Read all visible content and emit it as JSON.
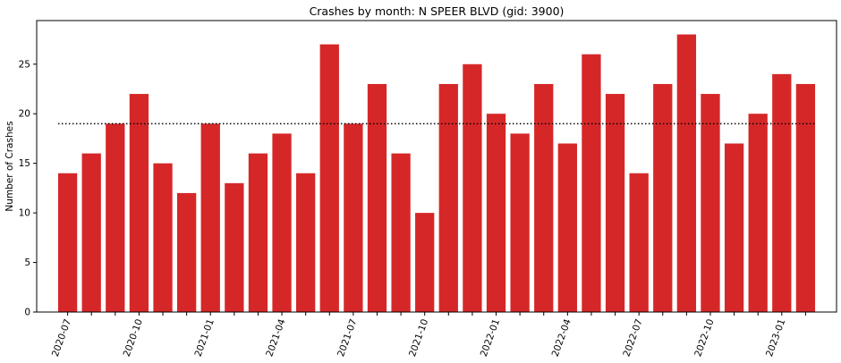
{
  "chart_data": {
    "type": "bar",
    "title": "Crashes by month: N SPEER BLVD (gid: 3900)",
    "xlabel": "",
    "ylabel": "Number of Crashes",
    "ylim": [
      0,
      29.4
    ],
    "yticks": [
      0,
      5,
      10,
      15,
      20,
      25
    ],
    "categories": [
      "2020-07",
      "2020-08",
      "2020-09",
      "2020-10",
      "2020-11",
      "2020-12",
      "2021-01",
      "2021-02",
      "2021-03",
      "2021-04",
      "2021-05",
      "2021-06",
      "2021-07",
      "2021-08",
      "2021-09",
      "2021-10",
      "2021-11",
      "2021-12",
      "2022-01",
      "2022-02",
      "2022-03",
      "2022-04",
      "2022-05",
      "2022-06",
      "2022-07",
      "2022-08",
      "2022-09",
      "2022-10",
      "2022-11",
      "2022-12",
      "2023-01",
      "2023-02"
    ],
    "xtick_labels": [
      "2020-07",
      "2020-10",
      "2021-01",
      "2021-04",
      "2021-07",
      "2021-10",
      "2022-01",
      "2022-04",
      "2022-07",
      "2022-10",
      "2023-01"
    ],
    "values": [
      14,
      16,
      19,
      22,
      15,
      12,
      19,
      13,
      16,
      18,
      14,
      27,
      19,
      23,
      16,
      10,
      23,
      25,
      20,
      18,
      23,
      17,
      26,
      22,
      14,
      23,
      28,
      22,
      17,
      20,
      24,
      23
    ],
    "mean_line": 19,
    "bar_color": "#d62728",
    "mean_line_color": "#000000",
    "grid": false,
    "legend": "none"
  }
}
